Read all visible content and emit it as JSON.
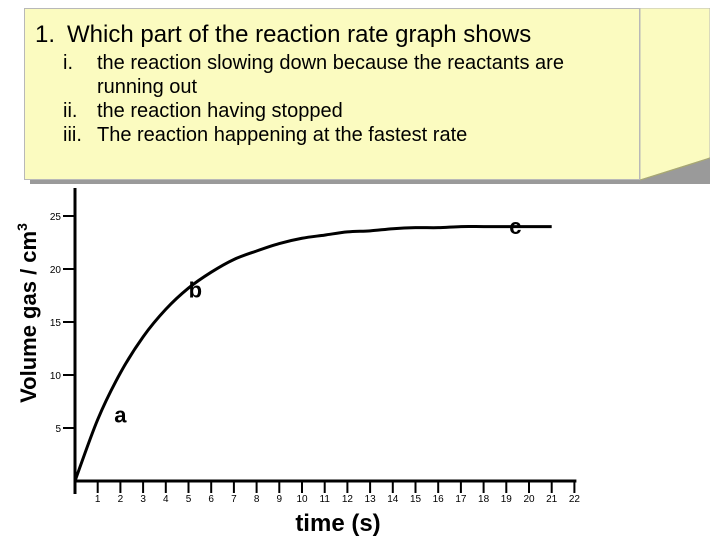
{
  "question": {
    "number": "1.",
    "prompt": "Which part of the reaction rate graph shows",
    "items": [
      {
        "roman": "i.",
        "text": "the reaction slowing down because the reactants are running out"
      },
      {
        "roman": "ii.",
        "text": "the reaction having stopped"
      },
      {
        "roman": "iii.",
        "text": "The reaction happening at the fastest rate"
      }
    ]
  },
  "chart_data": {
    "type": "line",
    "xlabel": "time (s)",
    "ylabel": "Volume gas / cm",
    "ylabel_superscript": "3",
    "xlim": [
      0,
      22
    ],
    "ylim": [
      0,
      26
    ],
    "x_ticks": [
      1,
      2,
      3,
      4,
      5,
      6,
      7,
      8,
      9,
      10,
      11,
      12,
      13,
      14,
      15,
      16,
      17,
      18,
      19,
      20,
      21,
      22
    ],
    "y_ticks": [
      5,
      10,
      15,
      20,
      25
    ],
    "grid": false,
    "series": [
      {
        "color": "#000000",
        "x": [
          0,
          1,
          2,
          3,
          4,
          5,
          6,
          7,
          8,
          9,
          10,
          11,
          12,
          13,
          14,
          15,
          16,
          17,
          18,
          19,
          20,
          21
        ],
        "y": [
          0,
          5.8,
          10.2,
          13.6,
          16.2,
          18.2,
          19.7,
          20.9,
          21.7,
          22.4,
          22.9,
          23.2,
          23.5,
          23.6,
          23.8,
          23.9,
          23.9,
          24,
          24,
          24,
          24,
          24
        ]
      }
    ],
    "annotations": [
      {
        "text": "a",
        "x": 2,
        "y": 5.5
      },
      {
        "text": "b",
        "x": 5.3,
        "y": 17.3
      },
      {
        "text": "c",
        "x": 19.4,
        "y": 23.3
      }
    ]
  }
}
